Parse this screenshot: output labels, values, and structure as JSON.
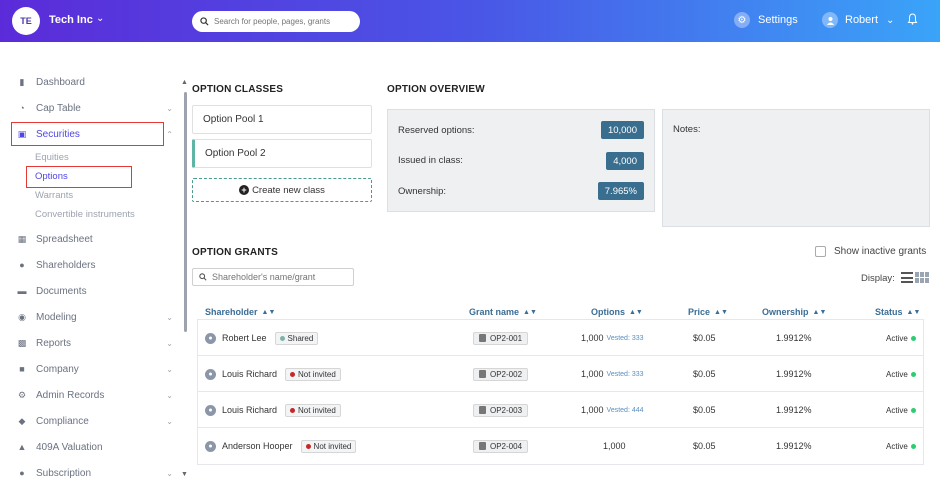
{
  "topbar": {
    "avatar_initials": "TE",
    "company": "Tech Inc",
    "search_placeholder": "Search for people, pages, grants",
    "settings_label": "Settings",
    "user_name": "Robert"
  },
  "sidebar": {
    "items": [
      {
        "label": "Dashboard",
        "icon": "dashboard-icon",
        "has_chevron": false
      },
      {
        "label": "Cap Table",
        "icon": "pie-chart-icon",
        "has_chevron": true
      },
      {
        "label": "Securities",
        "icon": "clipboard-icon",
        "has_chevron": true,
        "expanded": true
      },
      {
        "label": "Spreadsheet",
        "icon": "spreadsheet-icon",
        "has_chevron": false
      },
      {
        "label": "Shareholders",
        "icon": "user-icon",
        "has_chevron": false
      },
      {
        "label": "Documents",
        "icon": "folder-icon",
        "has_chevron": false
      },
      {
        "label": "Modeling",
        "icon": "lightbulb-icon",
        "has_chevron": true
      },
      {
        "label": "Reports",
        "icon": "reports-icon",
        "has_chevron": true
      },
      {
        "label": "Company",
        "icon": "building-icon",
        "has_chevron": true
      },
      {
        "label": "Admin Records",
        "icon": "gear-icon",
        "has_chevron": true
      },
      {
        "label": "Compliance",
        "icon": "shield-icon",
        "has_chevron": true
      },
      {
        "label": "409A Valuation",
        "icon": "valuation-icon",
        "has_chevron": false
      },
      {
        "label": "Subscription",
        "icon": "dollar-icon",
        "has_chevron": true
      }
    ],
    "securities_sub": [
      "Equities",
      "Options",
      "Warrants",
      "Convertible instruments"
    ]
  },
  "option_classes": {
    "heading": "OPTION CLASSES",
    "classes": [
      "Option Pool 1",
      "Option Pool 2"
    ],
    "create_label": "Create new class"
  },
  "overview": {
    "heading": "OPTION OVERVIEW",
    "rows": [
      {
        "label": "Reserved options:",
        "value": "10,000"
      },
      {
        "label": "Issued in class:",
        "value": "4,000"
      },
      {
        "label": "Ownership:",
        "value": "7.965%"
      }
    ],
    "notes_label": "Notes:"
  },
  "grants": {
    "heading": "OPTION GRANTS",
    "show_inactive_label": "Show inactive grants",
    "search_placeholder": "Shareholder's name/grant",
    "display_label": "Display:",
    "columns": [
      "Shareholder",
      "Grant name",
      "Options",
      "Price",
      "Ownership",
      "Status"
    ],
    "rows": [
      {
        "name": "Robert Lee",
        "tag": "Shared",
        "tag_color": "#7fb3a8",
        "grant": "OP2-001",
        "options": "1,000",
        "vested": "Vested: 333",
        "price": "$0.05",
        "ownership": "1.9912%",
        "status": "Active"
      },
      {
        "name": "Louis Richard",
        "tag": "Not invited",
        "tag_color": "#c62828",
        "grant": "OP2-002",
        "options": "1,000",
        "vested": "Vested: 333",
        "price": "$0.05",
        "ownership": "1.9912%",
        "status": "Active"
      },
      {
        "name": "Louis Richard",
        "tag": "Not invited",
        "tag_color": "#c62828",
        "grant": "OP2-003",
        "options": "1,000",
        "vested": "Vested: 444",
        "price": "$0.05",
        "ownership": "1.9912%",
        "status": "Active"
      },
      {
        "name": "Anderson Hooper",
        "tag": "Not invited",
        "tag_color": "#c62828",
        "grant": "OP2-004",
        "options": "1,000",
        "vested": "",
        "price": "$0.05",
        "ownership": "1.9912%",
        "status": "Active"
      }
    ]
  },
  "colors": {
    "accent": "#4f46e5",
    "badge": "#3a6e8f",
    "header_text": "#3b6e96",
    "highlight_box": "#e53935",
    "active_dot": "#2ecc71"
  }
}
